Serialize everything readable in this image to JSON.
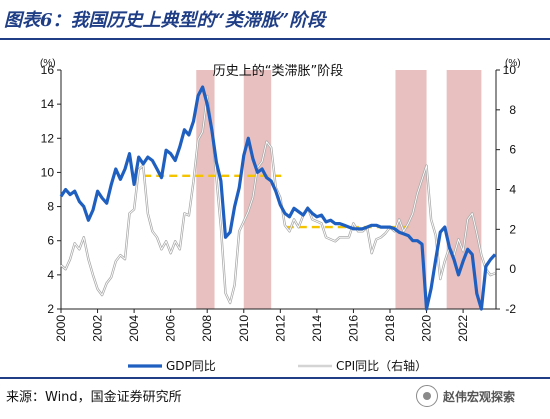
{
  "figure": {
    "title": "图表6：我国历史上典型的“类滞胀”阶段",
    "source": "来源：Wind，国金证券研究所",
    "watermark": "赵伟宏观探索"
  },
  "colors": {
    "gdp": "#1f5fbf",
    "cpi": "#a8a8a8",
    "shade": "#e8c0c0",
    "dash": "#f5c400",
    "brand": "#1f3e86"
  },
  "chart_data": {
    "type": "line",
    "title": "历史上的“类滞胀”阶段",
    "left_unit": "(%)",
    "right_unit": "(%)",
    "ylim_left": [
      2,
      16
    ],
    "ylim_right": [
      -2,
      10
    ],
    "xlim": [
      2000,
      2023.8
    ],
    "x_ticks": [
      "2000",
      "2002",
      "2004",
      "2006",
      "2008",
      "2010",
      "2012",
      "2014",
      "2016",
      "2018",
      "2020",
      "2022"
    ],
    "left_ticks": [
      "2",
      "4",
      "6",
      "8",
      "10",
      "12",
      "14",
      "16"
    ],
    "right_ticks": [
      "-2",
      "0",
      "2",
      "4",
      "6",
      "8",
      "10"
    ],
    "legend": [
      "GDP同比",
      "CPI同比（右轴）"
    ],
    "stagflation_periods": [
      [
        2007.4,
        2008.4
      ],
      [
        2010.0,
        2011.5
      ],
      [
        2018.3,
        2020.0
      ],
      [
        2021.1,
        2023.0
      ]
    ],
    "dashed_reference": [
      {
        "x": [
          2004.5,
          2012.3
        ],
        "value": 9.8,
        "axis": "left"
      },
      {
        "x": [
          2012.3,
          2019.0
        ],
        "value": 6.8,
        "axis": "left"
      }
    ],
    "series": [
      {
        "name": "GDP同比",
        "axis": "left",
        "points": [
          [
            2000,
            8.6
          ],
          [
            2000.25,
            9.0
          ],
          [
            2000.5,
            8.7
          ],
          [
            2000.75,
            8.9
          ],
          [
            2001,
            8.3
          ],
          [
            2001.25,
            8.0
          ],
          [
            2001.5,
            7.2
          ],
          [
            2001.75,
            7.8
          ],
          [
            2002,
            8.9
          ],
          [
            2002.25,
            8.5
          ],
          [
            2002.5,
            8.2
          ],
          [
            2002.75,
            9.3
          ],
          [
            2003,
            10.2
          ],
          [
            2003.25,
            9.6
          ],
          [
            2003.5,
            10.2
          ],
          [
            2003.75,
            11.1
          ],
          [
            2004,
            9.3
          ],
          [
            2004.25,
            10.9
          ],
          [
            2004.5,
            10.5
          ],
          [
            2004.75,
            10.9
          ],
          [
            2005,
            10.7
          ],
          [
            2005.25,
            10.2
          ],
          [
            2005.5,
            9.7
          ],
          [
            2005.75,
            11.3
          ],
          [
            2006,
            11.1
          ],
          [
            2006.25,
            10.7
          ],
          [
            2006.5,
            11.5
          ],
          [
            2006.75,
            12.5
          ],
          [
            2007,
            12.2
          ],
          [
            2007.25,
            13.0
          ],
          [
            2007.5,
            14.5
          ],
          [
            2007.75,
            15.0
          ],
          [
            2008,
            14.0
          ],
          [
            2008.25,
            12.5
          ],
          [
            2008.5,
            10.6
          ],
          [
            2008.75,
            9.5
          ],
          [
            2009,
            6.2
          ],
          [
            2009.25,
            6.5
          ],
          [
            2009.5,
            8.0
          ],
          [
            2009.75,
            9.1
          ],
          [
            2010,
            11.0
          ],
          [
            2010.25,
            12.0
          ],
          [
            2010.5,
            10.8
          ],
          [
            2010.75,
            10.0
          ],
          [
            2011,
            10.2
          ],
          [
            2011.25,
            9.7
          ],
          [
            2011.5,
            9.5
          ],
          [
            2011.75,
            8.9
          ],
          [
            2012,
            8.1
          ],
          [
            2012.25,
            7.6
          ],
          [
            2012.5,
            7.4
          ],
          [
            2012.75,
            7.9
          ],
          [
            2013,
            7.7
          ],
          [
            2013.25,
            7.5
          ],
          [
            2013.5,
            7.9
          ],
          [
            2013.75,
            7.6
          ],
          [
            2014,
            7.4
          ],
          [
            2014.25,
            7.5
          ],
          [
            2014.5,
            7.1
          ],
          [
            2014.75,
            7.2
          ],
          [
            2015,
            7.0
          ],
          [
            2015.25,
            7.0
          ],
          [
            2015.5,
            6.9
          ],
          [
            2015.75,
            6.8
          ],
          [
            2016,
            6.7
          ],
          [
            2016.25,
            6.7
          ],
          [
            2016.5,
            6.7
          ],
          [
            2016.75,
            6.8
          ],
          [
            2017,
            6.9
          ],
          [
            2017.25,
            6.9
          ],
          [
            2017.5,
            6.8
          ],
          [
            2017.75,
            6.8
          ],
          [
            2018,
            6.8
          ],
          [
            2018.25,
            6.7
          ],
          [
            2018.5,
            6.5
          ],
          [
            2018.75,
            6.4
          ],
          [
            2019,
            6.3
          ],
          [
            2019.25,
            6.0
          ],
          [
            2019.5,
            6.0
          ],
          [
            2019.75,
            5.8
          ],
          [
            2020,
            2.0
          ],
          [
            2020.25,
            3.2
          ],
          [
            2020.5,
            4.9
          ],
          [
            2020.75,
            6.5
          ],
          [
            2021,
            6.8
          ],
          [
            2021.25,
            5.6
          ],
          [
            2021.5,
            4.9
          ],
          [
            2021.75,
            4.0
          ],
          [
            2022,
            4.8
          ],
          [
            2022.25,
            5.5
          ],
          [
            2022.5,
            5.2
          ],
          [
            2022.75,
            2.9
          ],
          [
            2023,
            2.0
          ],
          [
            2023.25,
            4.5
          ],
          [
            2023.5,
            4.9
          ],
          [
            2023.75,
            5.2
          ]
        ]
      },
      {
        "name": "CPI同比（右轴）",
        "axis": "right",
        "points": [
          [
            2000,
            0.2
          ],
          [
            2000.25,
            0.0
          ],
          [
            2000.5,
            0.5
          ],
          [
            2000.75,
            1.3
          ],
          [
            2001,
            1.0
          ],
          [
            2001.25,
            1.6
          ],
          [
            2001.5,
            0.5
          ],
          [
            2001.75,
            -0.3
          ],
          [
            2002,
            -1.0
          ],
          [
            2002.25,
            -1.3
          ],
          [
            2002.5,
            -0.7
          ],
          [
            2002.75,
            -0.4
          ],
          [
            2003,
            0.4
          ],
          [
            2003.25,
            0.7
          ],
          [
            2003.5,
            0.5
          ],
          [
            2003.75,
            2.8
          ],
          [
            2004,
            3.0
          ],
          [
            2004.25,
            5.0
          ],
          [
            2004.5,
            5.2
          ],
          [
            2004.75,
            2.8
          ],
          [
            2005,
            1.9
          ],
          [
            2005.25,
            1.6
          ],
          [
            2005.5,
            1.0
          ],
          [
            2005.75,
            1.4
          ],
          [
            2006,
            0.8
          ],
          [
            2006.25,
            1.4
          ],
          [
            2006.5,
            1.0
          ],
          [
            2006.75,
            2.8
          ],
          [
            2007,
            2.7
          ],
          [
            2007.25,
            4.4
          ],
          [
            2007.5,
            6.5
          ],
          [
            2007.75,
            6.9
          ],
          [
            2008,
            8.7
          ],
          [
            2008.25,
            7.1
          ],
          [
            2008.5,
            4.6
          ],
          [
            2008.75,
            2.1
          ],
          [
            2009,
            -1.2
          ],
          [
            2009.25,
            -1.7
          ],
          [
            2009.5,
            -0.8
          ],
          [
            2009.75,
            1.9
          ],
          [
            2010,
            2.4
          ],
          [
            2010.25,
            2.9
          ],
          [
            2010.5,
            3.6
          ],
          [
            2010.75,
            5.1
          ],
          [
            2011,
            5.4
          ],
          [
            2011.25,
            6.4
          ],
          [
            2011.5,
            6.1
          ],
          [
            2011.75,
            4.1
          ],
          [
            2012,
            3.6
          ],
          [
            2012.25,
            2.2
          ],
          [
            2012.5,
            1.9
          ],
          [
            2012.75,
            2.5
          ],
          [
            2013,
            2.1
          ],
          [
            2013.25,
            2.7
          ],
          [
            2013.5,
            3.1
          ],
          [
            2013.75,
            2.5
          ],
          [
            2014,
            2.4
          ],
          [
            2014.25,
            2.3
          ],
          [
            2014.5,
            1.6
          ],
          [
            2014.75,
            1.5
          ],
          [
            2015,
            1.4
          ],
          [
            2015.25,
            1.6
          ],
          [
            2015.5,
            1.6
          ],
          [
            2015.75,
            1.6
          ],
          [
            2016,
            2.3
          ],
          [
            2016.25,
            1.9
          ],
          [
            2016.5,
            1.9
          ],
          [
            2016.75,
            2.1
          ],
          [
            2017,
            0.8
          ],
          [
            2017.25,
            1.5
          ],
          [
            2017.5,
            1.6
          ],
          [
            2017.75,
            1.8
          ],
          [
            2018,
            2.1
          ],
          [
            2018.25,
            1.9
          ],
          [
            2018.5,
            2.5
          ],
          [
            2018.75,
            1.9
          ],
          [
            2019,
            2.3
          ],
          [
            2019.25,
            2.8
          ],
          [
            2019.5,
            3.8
          ],
          [
            2019.75,
            4.5
          ],
          [
            2020,
            5.2
          ],
          [
            2020.25,
            2.5
          ],
          [
            2020.5,
            1.7
          ],
          [
            2020.75,
            -0.5
          ],
          [
            2021,
            0.4
          ],
          [
            2021.25,
            1.1
          ],
          [
            2021.5,
            0.7
          ],
          [
            2021.75,
            1.5
          ],
          [
            2022,
            0.9
          ],
          [
            2022.25,
            2.5
          ],
          [
            2022.5,
            2.8
          ],
          [
            2022.75,
            1.8
          ],
          [
            2023,
            0.7
          ],
          [
            2023.25,
            0.0
          ],
          [
            2023.5,
            -0.3
          ],
          [
            2023.75,
            -0.2
          ]
        ]
      }
    ]
  }
}
